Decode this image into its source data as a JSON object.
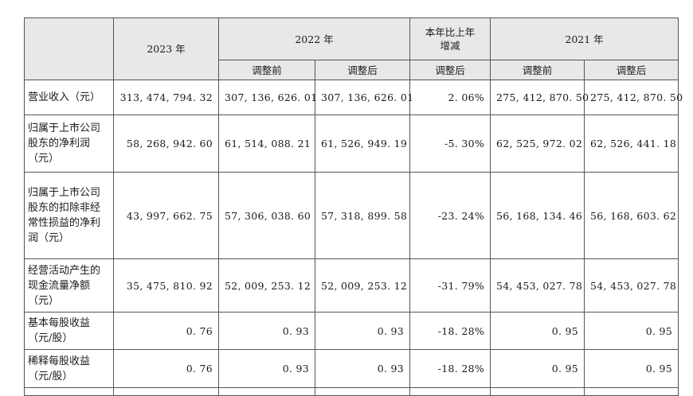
{
  "header": {
    "year_2023": "2023 年",
    "year_2022": "2022 年",
    "change_label": "本年比上年增减",
    "year_2021": "2021 年",
    "before_2022": "调整前",
    "after_2022": "调整后",
    "after_change": "调整后",
    "before_2021": "调整前",
    "after_2021": "调整后"
  },
  "rows": [
    {
      "label": "营业收入（元）",
      "v2023": "313, 474, 794. 32",
      "v2022_before": "307, 136, 626. 01",
      "v2022_after": "307, 136, 626. 01",
      "change": "2. 06%",
      "v2021_before": "275, 412, 870. 50",
      "v2021_after": "275, 412, 870. 50"
    },
    {
      "label": "归属于上市公司股东的净利润（元）",
      "v2023": "58, 268, 942. 60",
      "v2022_before": "61, 514, 088. 21",
      "v2022_after": "61, 526, 949. 19",
      "change": "-5. 30%",
      "v2021_before": "62, 525, 972. 02",
      "v2021_after": "62, 526, 441. 18"
    },
    {
      "label": "归属于上市公司股东的扣除非经常性损益的净利润（元）",
      "v2023": "43, 997, 662. 75",
      "v2022_before": "57, 306, 038. 60",
      "v2022_after": "57, 318, 899. 58",
      "change": "-23. 24%",
      "v2021_before": "56, 168, 134. 46",
      "v2021_after": "56, 168, 603. 62"
    },
    {
      "label": "经营活动产生的现金流量净额（元）",
      "v2023": "35, 475, 810. 92",
      "v2022_before": "52, 009, 253. 12",
      "v2022_after": "52, 009, 253. 12",
      "change": "-31. 79%",
      "v2021_before": "54, 453, 027. 78",
      "v2021_after": "54, 453, 027. 78"
    },
    {
      "label": "基本每股收益（元/股）",
      "v2023": "0. 76",
      "v2022_before": "0. 93",
      "v2022_after": "0. 93",
      "change": "-18. 28%",
      "v2021_before": "0. 95",
      "v2021_after": "0. 95"
    },
    {
      "label": "稀释每股收益（元/股）",
      "v2023": "0. 76",
      "v2022_before": "0. 93",
      "v2022_after": "0. 93",
      "change": "-18. 28%",
      "v2021_before": "0. 95",
      "v2021_after": "0. 95"
    }
  ]
}
